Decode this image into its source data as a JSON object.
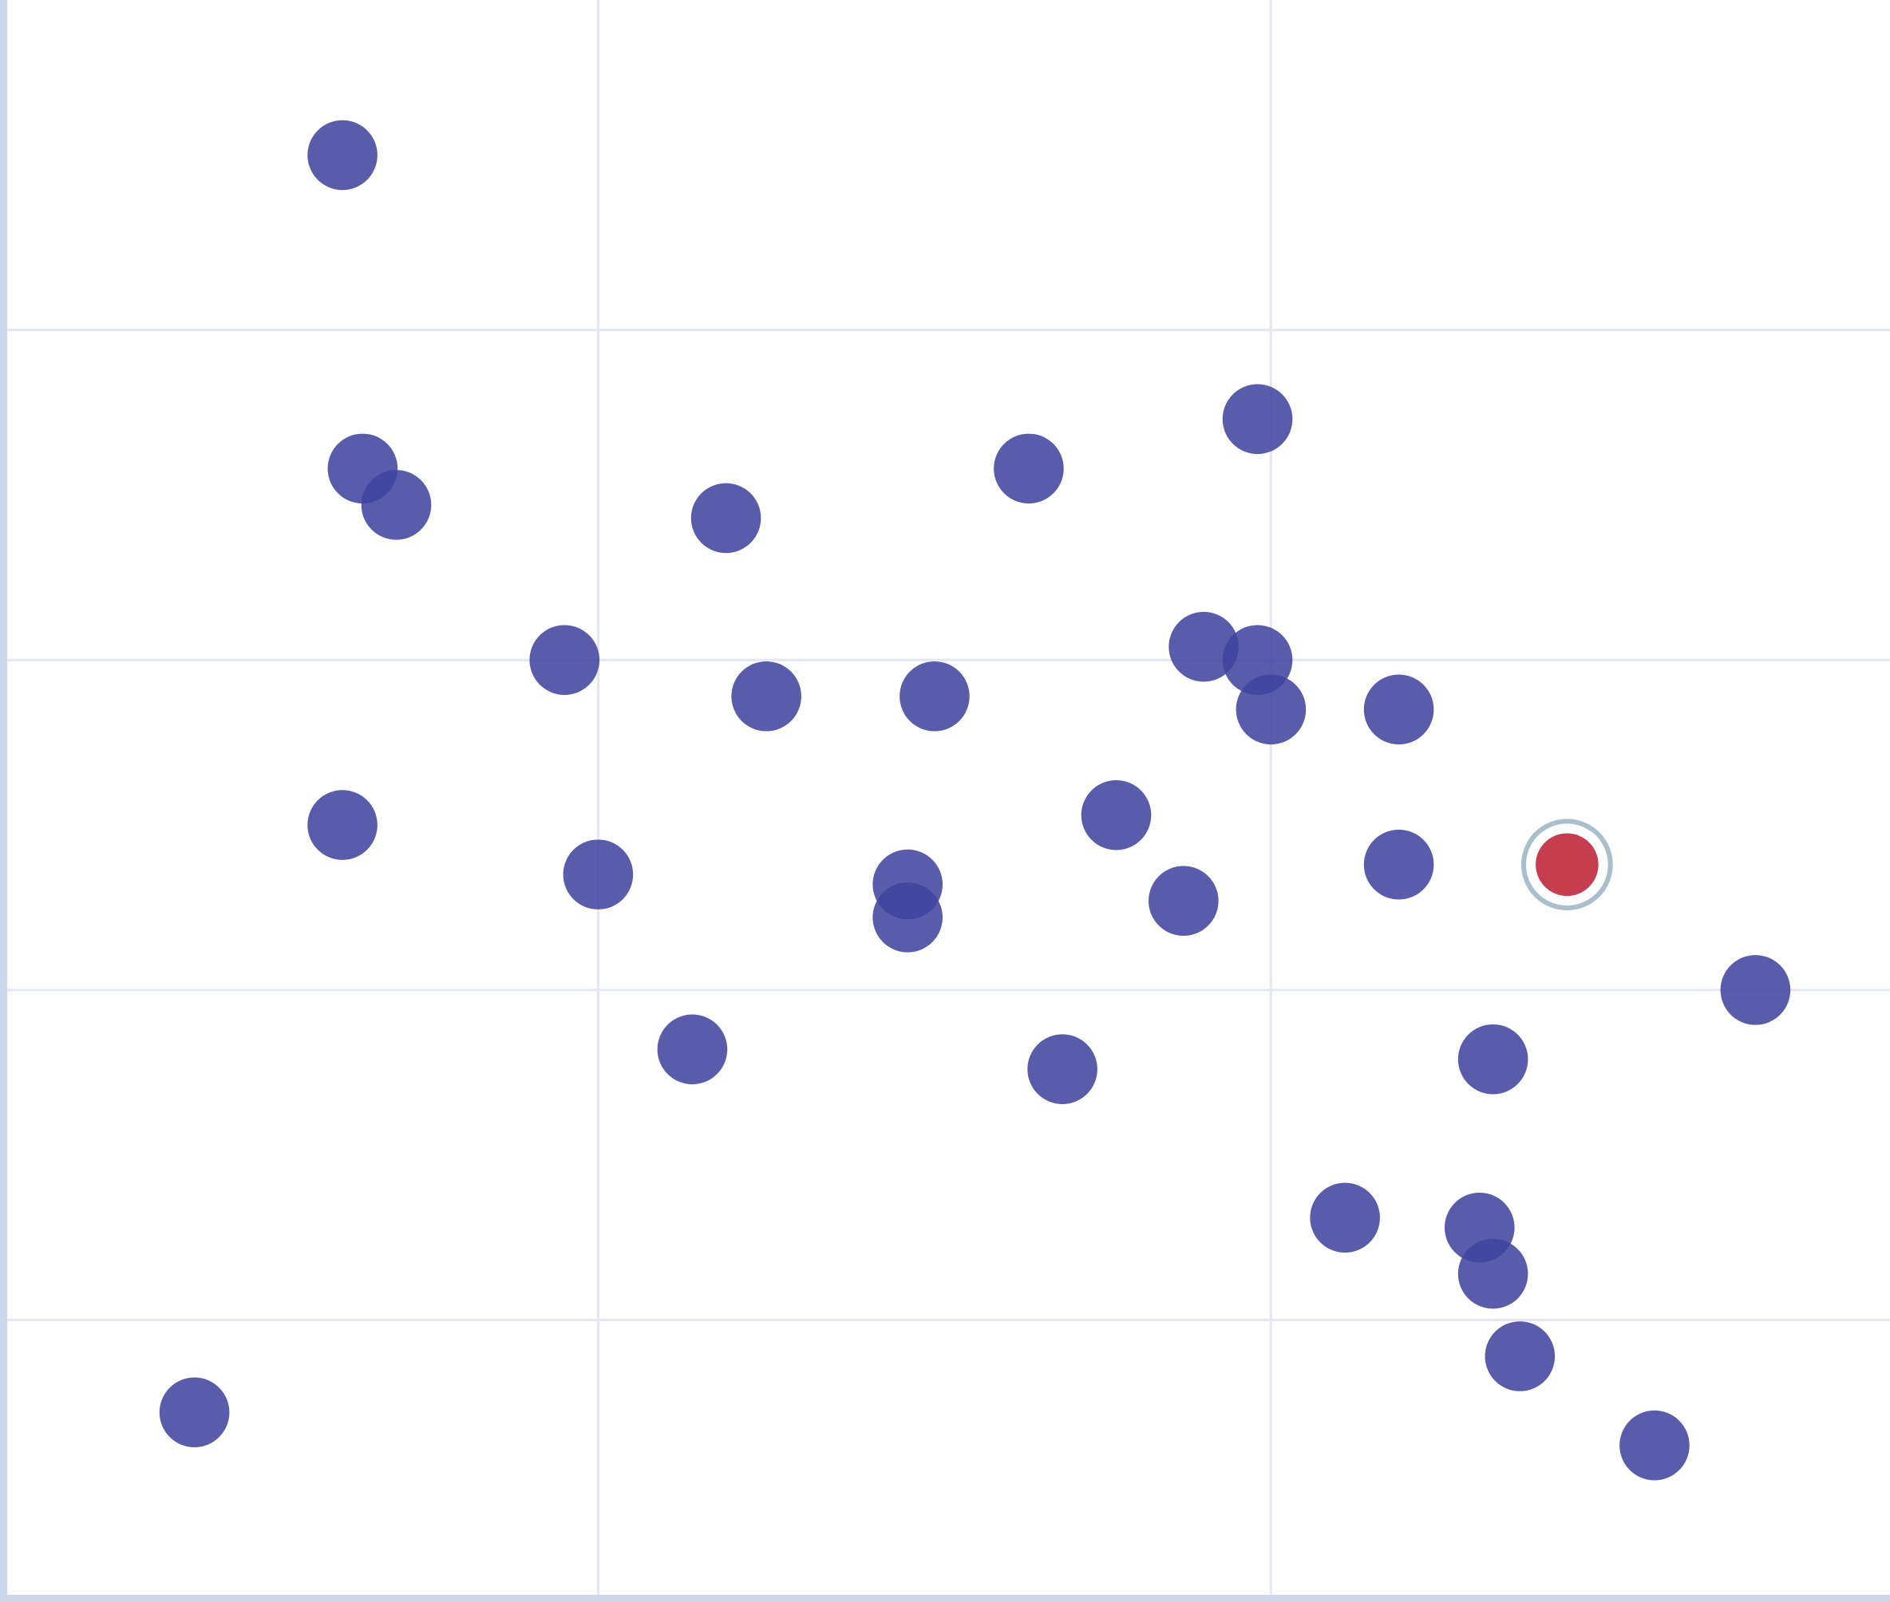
{
  "chart_data": {
    "type": "scatter",
    "title": "",
    "xlabel": "",
    "ylabel": "",
    "xlim": [
      0.12,
      2.92
    ],
    "ylim": [
      0.16,
      5.0
    ],
    "xgrid": [
      1,
      2
    ],
    "ygrid": [
      1,
      2,
      3,
      4
    ],
    "grid": true,
    "colors": {
      "point": "#3f449f",
      "highlight": "#c0283c",
      "highlight_ring": "#a9bfcc",
      "axis": "#cdd8ec",
      "grid": "#e4e7f3"
    },
    "points": [
      {
        "x": 0.62,
        "y": 4.53
      },
      {
        "x": 0.65,
        "y": 3.58
      },
      {
        "x": 0.7,
        "y": 3.47
      },
      {
        "x": 1.19,
        "y": 3.43
      },
      {
        "x": 1.64,
        "y": 3.58
      },
      {
        "x": 1.98,
        "y": 3.73
      },
      {
        "x": 0.95,
        "y": 3.0
      },
      {
        "x": 1.25,
        "y": 2.89
      },
      {
        "x": 1.5,
        "y": 2.89
      },
      {
        "x": 1.9,
        "y": 3.04
      },
      {
        "x": 1.98,
        "y": 3.0
      },
      {
        "x": 2.0,
        "y": 2.85
      },
      {
        "x": 2.19,
        "y": 2.85
      },
      {
        "x": 0.62,
        "y": 2.5
      },
      {
        "x": 1.0,
        "y": 2.35
      },
      {
        "x": 1.46,
        "y": 2.32
      },
      {
        "x": 1.46,
        "y": 2.22
      },
      {
        "x": 1.77,
        "y": 2.53
      },
      {
        "x": 1.87,
        "y": 2.27
      },
      {
        "x": 2.19,
        "y": 2.38
      },
      {
        "x": 2.44,
        "y": 2.38,
        "highlighted": true
      },
      {
        "x": 2.72,
        "y": 2.0
      },
      {
        "x": 1.14,
        "y": 1.82
      },
      {
        "x": 1.69,
        "y": 1.76
      },
      {
        "x": 2.33,
        "y": 1.79
      },
      {
        "x": 2.11,
        "y": 1.31
      },
      {
        "x": 2.31,
        "y": 1.28
      },
      {
        "x": 2.33,
        "y": 1.14
      },
      {
        "x": 2.37,
        "y": 0.89
      },
      {
        "x": 0.4,
        "y": 0.72
      },
      {
        "x": 2.57,
        "y": 0.62
      }
    ]
  }
}
